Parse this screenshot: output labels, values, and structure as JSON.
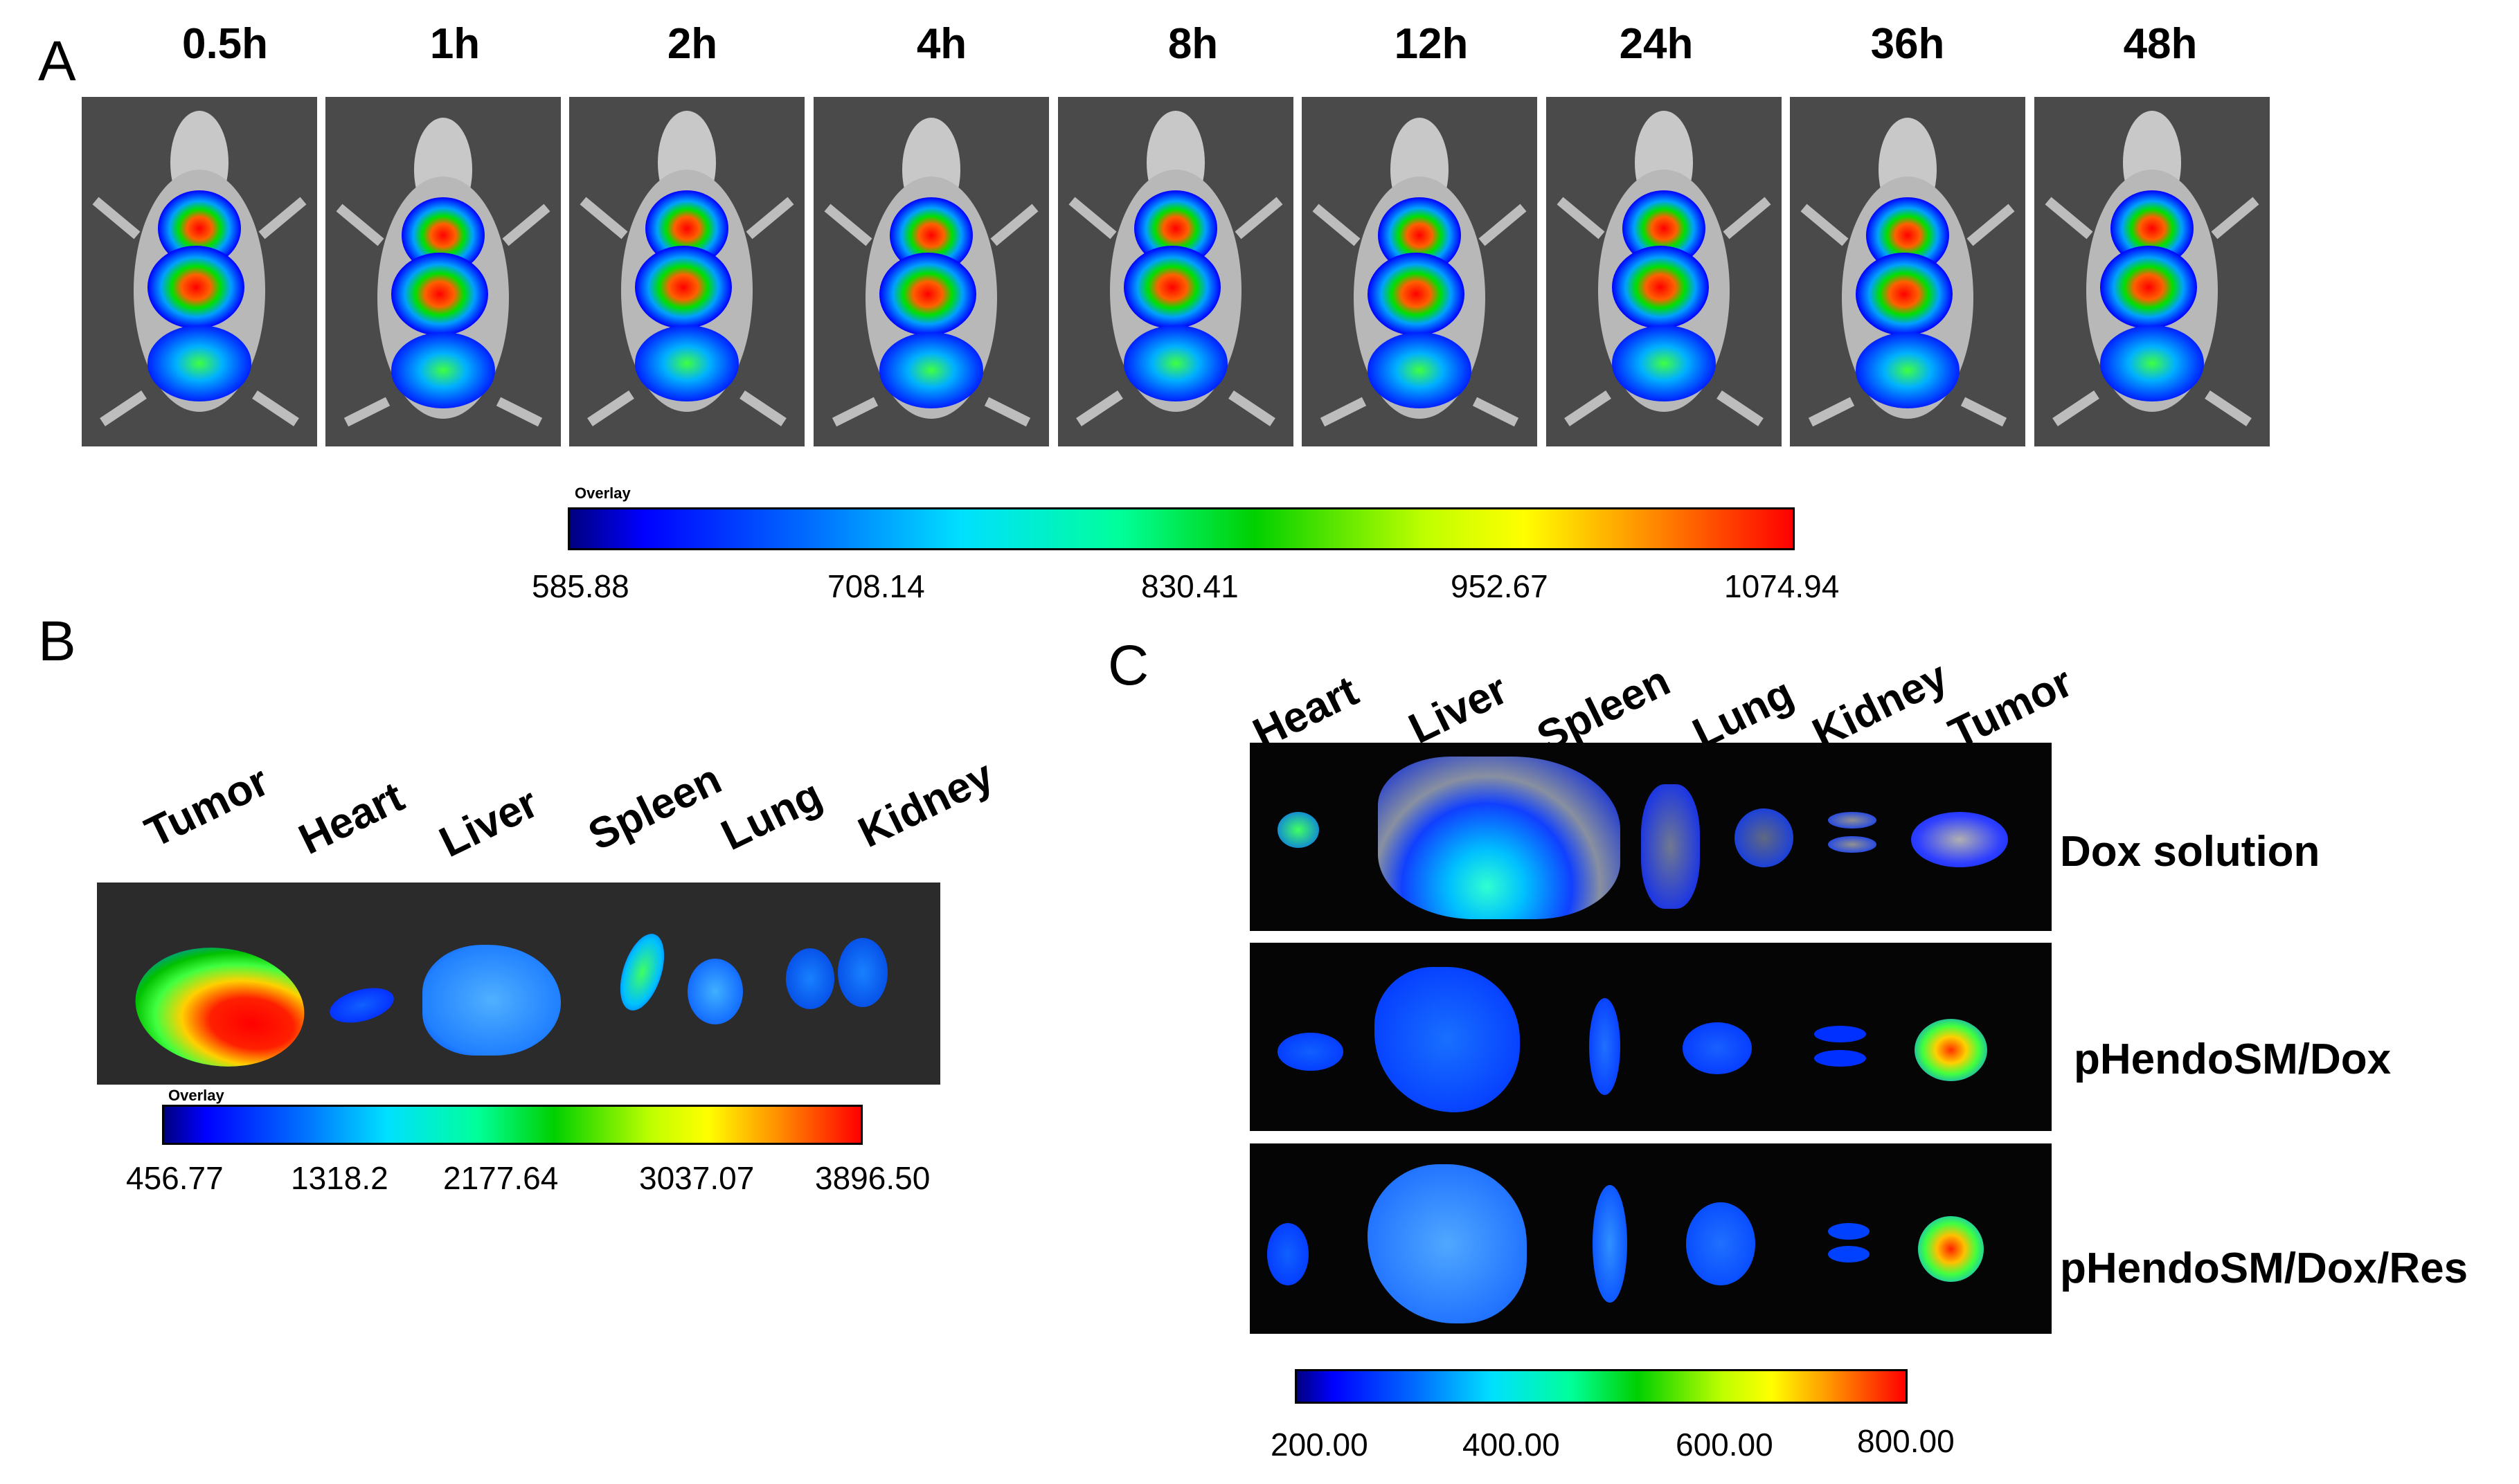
{
  "panel_a": {
    "label": "A",
    "time_points": [
      "0.5h",
      "1h",
      "2h",
      "4h",
      "8h",
      "12h",
      "24h",
      "36h",
      "48h"
    ],
    "scale": {
      "title": "Overlay",
      "ticks": [
        "585.88",
        "708.14",
        "830.41",
        "952.67",
        "1074.94"
      ]
    }
  },
  "panel_b": {
    "label": "B",
    "organs": [
      "Tumor",
      "Heart",
      "Liver",
      "Spleen",
      "Lung",
      "Kidney"
    ],
    "scale": {
      "title": "Overlay",
      "ticks": [
        "456.77",
        "1318.2",
        "2177.64",
        "3037.07",
        "3896.50"
      ]
    }
  },
  "panel_c": {
    "label": "C",
    "organs": [
      "Heart",
      "Liver",
      "Spleen",
      "Lung",
      "Kidney",
      "Tumor"
    ],
    "groups": [
      "Dox solution",
      "pHendoSM/Dox",
      "pHendoSM/Dox/Res"
    ],
    "scale": {
      "ticks": [
        "200.00",
        "400.00",
        "600.00",
        "800.00"
      ]
    }
  },
  "colors": {
    "background": "#ffffff",
    "image_background": "#3a3a3a",
    "fluorescence_low": "#0000ff",
    "fluorescence_high": "#ff0000"
  }
}
